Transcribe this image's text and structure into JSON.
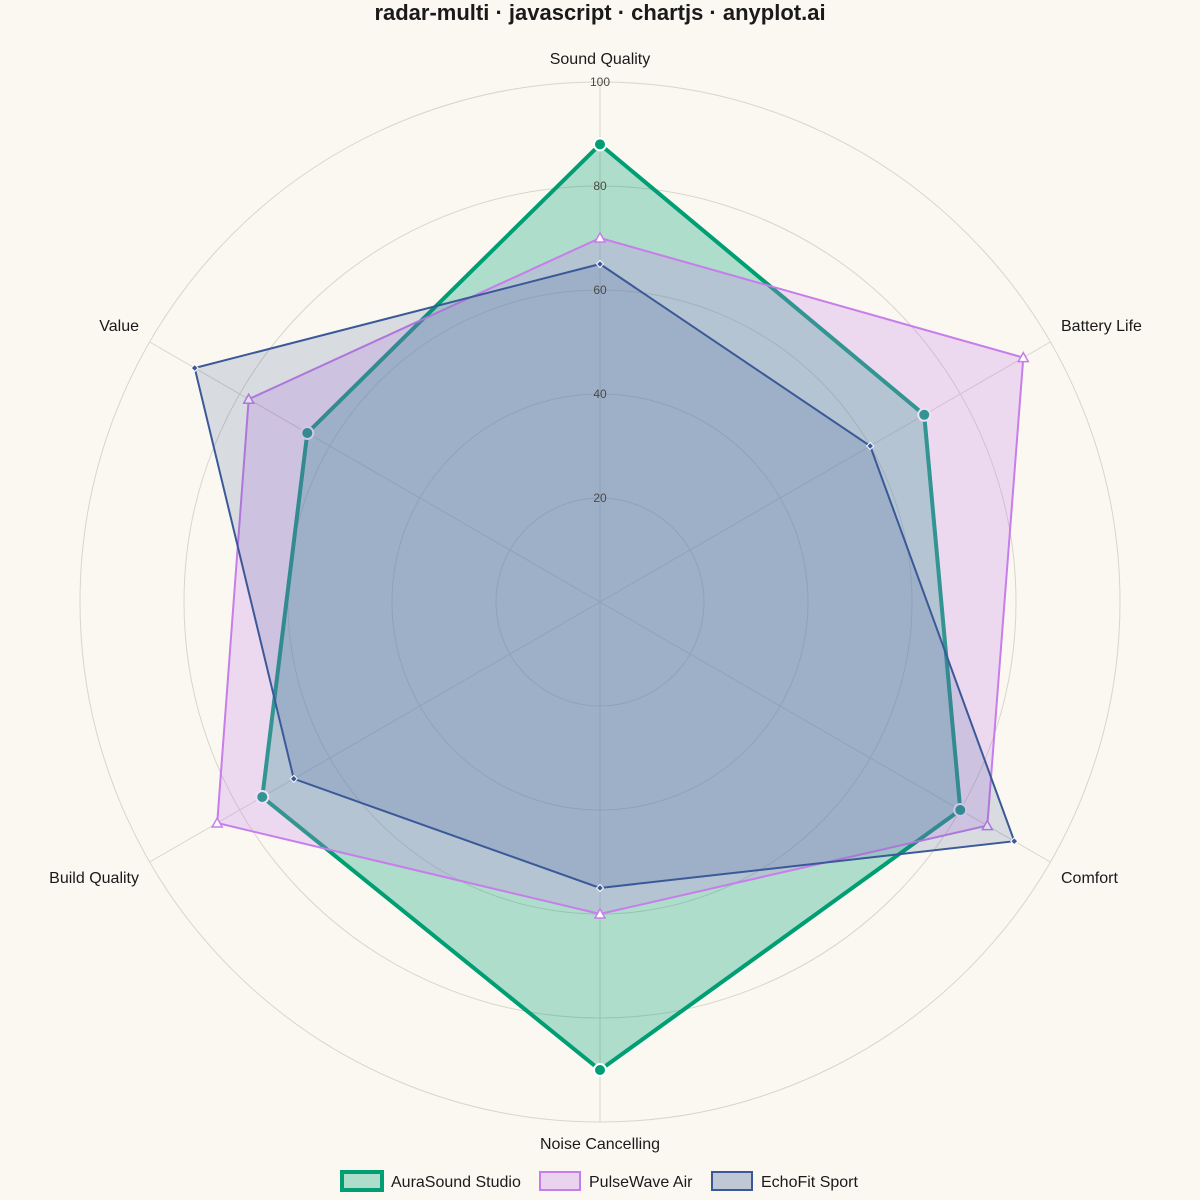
{
  "chart_data": {
    "type": "radar",
    "title": "radar-multi · javascript · chartjs · anyplot.ai",
    "axes": [
      "Sound Quality",
      "Battery Life",
      "Comfort",
      "Noise Cancelling",
      "Build Quality",
      "Value"
    ],
    "rlim": [
      0,
      100
    ],
    "ticks": [
      20,
      40,
      60,
      80,
      100
    ],
    "grid": true,
    "legend_position": "bottom",
    "series": [
      {
        "name": "AuraSound Studio",
        "values": [
          88,
          72,
          80,
          90,
          75,
          65
        ],
        "color": "#009E73",
        "fill": "rgba(0,158,115,0.30)",
        "line_width": 4,
        "marker": "circle"
      },
      {
        "name": "PulseWave Air",
        "values": [
          70,
          94,
          86,
          60,
          85,
          78
        ],
        "color": "#C77DEA",
        "fill": "rgba(199,125,234,0.25)",
        "line_width": 2,
        "marker": "triangle"
      },
      {
        "name": "EchoFit Sport",
        "values": [
          65,
          60,
          92,
          55,
          68,
          90
        ],
        "color": "#3B5998",
        "fill": "rgba(59,89,152,0.18)",
        "line_width": 2,
        "marker": "diamond"
      }
    ]
  }
}
